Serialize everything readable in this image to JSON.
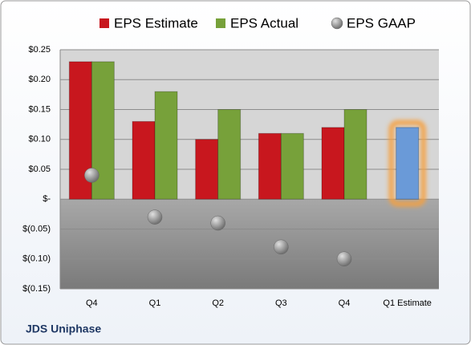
{
  "chart_data": {
    "type": "bar",
    "footer": "JDS Uniphase",
    "categories": [
      "Q4",
      "Q1",
      "Q2",
      "Q3",
      "Q4",
      "Q1 Estimate"
    ],
    "series": [
      {
        "name": "EPS Estimate",
        "color": "#c8171e",
        "values": [
          0.23,
          0.13,
          0.1,
          0.11,
          0.12,
          0.12
        ]
      },
      {
        "name": "EPS Actual",
        "color": "#77a13a",
        "values": [
          0.23,
          0.18,
          0.15,
          0.11,
          0.15,
          null
        ]
      },
      {
        "name": "EPS GAAP",
        "color": "#9a9a9a",
        "mark": "point",
        "values": [
          0.04,
          -0.03,
          -0.04,
          -0.08,
          -0.1,
          null
        ]
      }
    ],
    "estimate_color": "#6a9ad8",
    "ylim": [
      -0.15,
      0.25
    ],
    "yticks": [
      {
        "value": 0.25,
        "label": "$0.25"
      },
      {
        "value": 0.2,
        "label": "$0.20"
      },
      {
        "value": 0.15,
        "label": "$0.15"
      },
      {
        "value": 0.1,
        "label": "$0.10"
      },
      {
        "value": 0.05,
        "label": "$0.05"
      },
      {
        "value": 0,
        "label": "$-"
      },
      {
        "value": -0.05,
        "label": "$(0.05)"
      },
      {
        "value": -0.1,
        "label": "$(0.10)"
      },
      {
        "value": -0.15,
        "label": "$(0.15)"
      }
    ],
    "grid": true
  }
}
